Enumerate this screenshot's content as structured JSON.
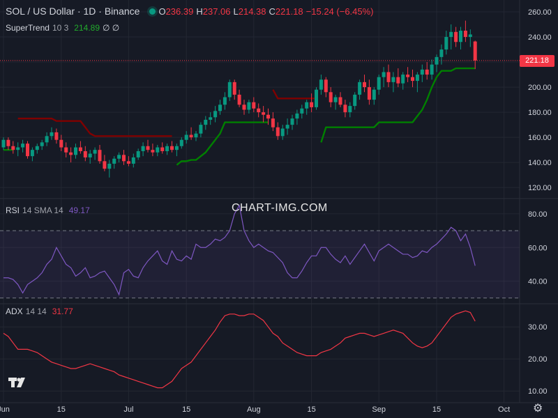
{
  "header": {
    "symbol": "SOL / US Dollar · 1D · Binance",
    "open_label": "O",
    "open": "236.39",
    "high_label": "H",
    "high": "237.06",
    "low_label": "L",
    "low": "214.38",
    "close_label": "C",
    "close": "221.18",
    "change": "−15.24 (−6.45%)"
  },
  "supertrend_legend": {
    "name": "SuperTrend",
    "params": "10 3",
    "value": "214.89",
    "extra": "∅ ∅"
  },
  "rsi_legend": {
    "name": "RSI",
    "params": "14 SMA 14",
    "value": "49.17"
  },
  "adx_legend": {
    "name": "ADX",
    "params": "14 14",
    "value": "31.77"
  },
  "watermark": "CHART-IMG.COM",
  "last_price_label": "221.18",
  "colors": {
    "up": "#089981",
    "down": "#f23645",
    "st_up": "#008000",
    "st_down": "#800000",
    "rsi": "#7e57c2",
    "adx": "#f23645",
    "bg": "#161a25",
    "grid": "#232732",
    "axis": "#d1d4dc"
  },
  "icons": {
    "logo": "tradingview-logo-icon",
    "settings": "gear-icon"
  },
  "chart_data": [
    {
      "type": "candlestick",
      "title": "SOL / US Dollar · 1D · Binance",
      "x_tick_labels": [
        "Jun",
        "15",
        "Jul",
        "15",
        "Aug",
        "15",
        "Sep",
        "15",
        "Oct"
      ],
      "y_ticks": [
        120,
        140,
        160,
        180,
        200,
        220,
        240,
        260
      ],
      "ylim": [
        114,
        265
      ],
      "candles": [
        [
          152,
          160,
          150,
          158
        ],
        [
          158,
          160,
          150,
          153
        ],
        [
          153,
          157,
          147,
          150
        ],
        [
          150,
          156,
          145,
          152
        ],
        [
          152,
          158,
          148,
          155
        ],
        [
          155,
          157,
          143,
          145
        ],
        [
          145,
          152,
          141,
          150
        ],
        [
          150,
          155,
          147,
          153
        ],
        [
          153,
          158,
          150,
          156
        ],
        [
          156,
          164,
          153,
          161
        ],
        [
          161,
          168,
          158,
          164
        ],
        [
          164,
          167,
          155,
          158
        ],
        [
          158,
          162,
          149,
          152
        ],
        [
          152,
          156,
          144,
          148
        ],
        [
          148,
          152,
          140,
          146
        ],
        [
          146,
          155,
          143,
          152
        ],
        [
          152,
          157,
          147,
          149
        ],
        [
          149,
          153,
          141,
          144
        ],
        [
          144,
          150,
          139,
          147
        ],
        [
          147,
          152,
          142,
          150
        ],
        [
          150,
          154,
          139,
          141
        ],
        [
          141,
          146,
          133,
          135
        ],
        [
          135,
          142,
          128,
          139
        ],
        [
          139,
          145,
          135,
          143
        ],
        [
          143,
          148,
          140,
          146
        ],
        [
          146,
          150,
          138,
          141
        ],
        [
          141,
          145,
          137,
          139
        ],
        [
          139,
          147,
          136,
          144
        ],
        [
          144,
          151,
          142,
          149
        ],
        [
          149,
          156,
          145,
          153
        ],
        [
          153,
          158,
          148,
          150
        ],
        [
          150,
          155,
          145,
          148
        ],
        [
          148,
          154,
          145,
          152
        ],
        [
          152,
          156,
          147,
          149
        ],
        [
          149,
          155,
          146,
          153
        ],
        [
          153,
          157,
          148,
          150
        ],
        [
          150,
          155,
          145,
          153
        ],
        [
          153,
          160,
          151,
          158
        ],
        [
          158,
          165,
          155,
          162
        ],
        [
          162,
          168,
          158,
          160
        ],
        [
          160,
          165,
          157,
          163
        ],
        [
          163,
          172,
          160,
          170
        ],
        [
          170,
          177,
          166,
          174
        ],
        [
          174,
          180,
          170,
          176
        ],
        [
          176,
          185,
          172,
          181
        ],
        [
          181,
          190,
          178,
          186
        ],
        [
          186,
          196,
          182,
          192
        ],
        [
          192,
          206,
          189,
          204
        ],
        [
          204,
          206,
          190,
          194
        ],
        [
          194,
          198,
          184,
          186
        ],
        [
          186,
          190,
          178,
          182
        ],
        [
          182,
          190,
          179,
          188
        ],
        [
          188,
          192,
          180,
          183
        ],
        [
          183,
          187,
          176,
          180
        ],
        [
          180,
          185,
          172,
          178
        ],
        [
          178,
          183,
          170,
          175
        ],
        [
          175,
          180,
          165,
          168
        ],
        [
          168,
          172,
          158,
          161
        ],
        [
          161,
          170,
          158,
          167
        ],
        [
          167,
          175,
          162,
          170
        ],
        [
          170,
          178,
          166,
          175
        ],
        [
          175,
          182,
          170,
          179
        ],
        [
          179,
          186,
          175,
          183
        ],
        [
          183,
          190,
          178,
          188
        ],
        [
          188,
          195,
          180,
          184
        ],
        [
          184,
          200,
          182,
          198
        ],
        [
          198,
          210,
          194,
          206
        ],
        [
          206,
          208,
          192,
          196
        ],
        [
          196,
          200,
          184,
          188
        ],
        [
          188,
          194,
          182,
          192
        ],
        [
          192,
          196,
          184,
          186
        ],
        [
          186,
          190,
          176,
          180
        ],
        [
          180,
          188,
          176,
          185
        ],
        [
          185,
          196,
          182,
          194
        ],
        [
          194,
          206,
          190,
          204
        ],
        [
          204,
          210,
          196,
          200
        ],
        [
          200,
          206,
          186,
          190
        ],
        [
          190,
          200,
          186,
          198
        ],
        [
          198,
          210,
          194,
          208
        ],
        [
          208,
          216,
          200,
          212
        ],
        [
          212,
          218,
          200,
          204
        ],
        [
          204,
          212,
          196,
          208
        ],
        [
          208,
          215,
          200,
          203
        ],
        [
          203,
          212,
          198,
          210
        ],
        [
          210,
          216,
          204,
          208
        ],
        [
          208,
          214,
          200,
          205
        ],
        [
          205,
          212,
          196,
          210
        ],
        [
          210,
          218,
          204,
          214
        ],
        [
          214,
          220,
          206,
          210
        ],
        [
          210,
          222,
          206,
          218
        ],
        [
          218,
          226,
          212,
          224
        ],
        [
          224,
          234,
          218,
          230
        ],
        [
          230,
          245,
          226,
          240
        ],
        [
          240,
          250,
          230,
          244
        ],
        [
          244,
          248,
          232,
          236
        ],
        [
          236,
          248,
          230,
          245
        ],
        [
          245,
          253,
          236,
          240
        ],
        [
          240,
          246,
          232,
          242
        ],
        [
          236.39,
          237.06,
          214.38,
          221.18
        ]
      ],
      "supertrend": [
        {
          "dir": "up",
          "v": 150
        },
        {
          "dir": "up",
          "v": 150
        },
        {
          "dir": "up",
          "v": 150
        },
        {
          "dir": "down",
          "v": 175
        },
        {
          "dir": "down",
          "v": 175
        },
        {
          "dir": "down",
          "v": 175
        },
        {
          "dir": "down",
          "v": 175
        },
        {
          "dir": "down",
          "v": 175
        },
        {
          "dir": "down",
          "v": 175
        },
        {
          "dir": "down",
          "v": 175
        },
        {
          "dir": "down",
          "v": 175
        },
        {
          "dir": "down",
          "v": 173
        },
        {
          "dir": "down",
          "v": 173
        },
        {
          "dir": "down",
          "v": 173
        },
        {
          "dir": "down",
          "v": 173
        },
        {
          "dir": "down",
          "v": 173
        },
        {
          "dir": "down",
          "v": 173
        },
        {
          "dir": "down",
          "v": 168
        },
        {
          "dir": "down",
          "v": 163
        },
        {
          "dir": "down",
          "v": 161
        },
        {
          "dir": "down",
          "v": 161
        },
        {
          "dir": "down",
          "v": 161
        },
        {
          "dir": "down",
          "v": 161
        },
        {
          "dir": "down",
          "v": 161
        },
        {
          "dir": "down",
          "v": 161
        },
        {
          "dir": "down",
          "v": 161
        },
        {
          "dir": "down",
          "v": 161
        },
        {
          "dir": "down",
          "v": 161
        },
        {
          "dir": "down",
          "v": 161
        },
        {
          "dir": "down",
          "v": 161
        },
        {
          "dir": "down",
          "v": 161
        },
        {
          "dir": "down",
          "v": 161
        },
        {
          "dir": "down",
          "v": 161
        },
        {
          "dir": "down",
          "v": 161
        },
        {
          "dir": "down",
          "v": 161
        },
        {
          "dir": "down",
          "v": 161
        },
        {
          "dir": "up",
          "v": 138
        },
        {
          "dir": "up",
          "v": 141
        },
        {
          "dir": "up",
          "v": 141
        },
        {
          "dir": "up",
          "v": 142
        },
        {
          "dir": "up",
          "v": 142
        },
        {
          "dir": "up",
          "v": 145
        },
        {
          "dir": "up",
          "v": 148
        },
        {
          "dir": "up",
          "v": 153
        },
        {
          "dir": "up",
          "v": 158
        },
        {
          "dir": "up",
          "v": 163
        },
        {
          "dir": "up",
          "v": 172
        },
        {
          "dir": "up",
          "v": 172
        },
        {
          "dir": "up",
          "v": 172
        },
        {
          "dir": "up",
          "v": 172
        },
        {
          "dir": "up",
          "v": 172
        },
        {
          "dir": "up",
          "v": 172
        },
        {
          "dir": "up",
          "v": 172
        },
        {
          "dir": "up",
          "v": 172
        },
        {
          "dir": "up",
          "v": 172
        },
        {
          "dir": "up",
          "v": 172
        },
        {
          "dir": "down",
          "v": 198
        },
        {
          "dir": "down",
          "v": 191
        },
        {
          "dir": "down",
          "v": 191
        },
        {
          "dir": "down",
          "v": 191
        },
        {
          "dir": "down",
          "v": 191
        },
        {
          "dir": "down",
          "v": 191
        },
        {
          "dir": "down",
          "v": 191
        },
        {
          "dir": "down",
          "v": 191
        },
        {
          "dir": "down",
          "v": 191
        },
        {
          "dir": "down",
          "v": 191
        },
        {
          "dir": "up",
          "v": 156
        },
        {
          "dir": "up",
          "v": 168
        },
        {
          "dir": "up",
          "v": 168
        },
        {
          "dir": "up",
          "v": 168
        },
        {
          "dir": "up",
          "v": 168
        },
        {
          "dir": "up",
          "v": 168
        },
        {
          "dir": "up",
          "v": 168
        },
        {
          "dir": "up",
          "v": 168
        },
        {
          "dir": "up",
          "v": 168
        },
        {
          "dir": "up",
          "v": 168
        },
        {
          "dir": "up",
          "v": 168
        },
        {
          "dir": "up",
          "v": 168
        },
        {
          "dir": "up",
          "v": 172
        },
        {
          "dir": "up",
          "v": 172
        },
        {
          "dir": "up",
          "v": 172
        },
        {
          "dir": "up",
          "v": 172
        },
        {
          "dir": "up",
          "v": 172
        },
        {
          "dir": "up",
          "v": 172
        },
        {
          "dir": "up",
          "v": 172
        },
        {
          "dir": "up",
          "v": 172
        },
        {
          "dir": "up",
          "v": 177
        },
        {
          "dir": "up",
          "v": 182
        },
        {
          "dir": "up",
          "v": 190
        },
        {
          "dir": "up",
          "v": 200
        },
        {
          "dir": "up",
          "v": 208
        },
        {
          "dir": "up",
          "v": 213
        },
        {
          "dir": "up",
          "v": 213
        },
        {
          "dir": "up",
          "v": 213
        },
        {
          "dir": "up",
          "v": 215
        },
        {
          "dir": "up",
          "v": 215
        },
        {
          "dir": "up",
          "v": 215
        },
        {
          "dir": "up",
          "v": 215
        },
        {
          "dir": "up",
          "v": 215
        }
      ]
    },
    {
      "type": "line",
      "title": "RSI 14 SMA 14",
      "y_ticks": [
        40,
        60,
        80
      ],
      "ylim": [
        27,
        87
      ],
      "bands": [
        30,
        70
      ],
      "values": [
        42,
        42,
        41,
        38,
        33,
        38,
        40,
        42,
        45,
        50,
        53,
        60,
        55,
        50,
        48,
        43,
        45,
        48,
        42,
        43,
        45,
        46,
        42,
        38,
        32,
        45,
        47,
        43,
        42,
        48,
        52,
        55,
        58,
        52,
        50,
        58,
        53,
        52,
        55,
        53,
        62,
        60,
        60,
        62,
        65,
        64,
        66,
        70,
        80,
        85,
        70,
        64,
        60,
        62,
        60,
        58,
        57,
        54,
        51,
        45,
        42,
        42,
        46,
        51,
        55,
        55,
        60,
        60,
        56,
        53,
        51,
        55,
        50,
        54,
        58,
        62,
        57,
        52,
        58,
        60,
        62,
        60,
        58,
        56,
        56,
        54,
        55,
        58,
        57,
        60,
        62,
        65,
        68,
        72,
        70,
        64,
        68,
        60,
        49.17
      ]
    },
    {
      "type": "line",
      "title": "ADX 14 14",
      "y_ticks": [
        10,
        20,
        30
      ],
      "ylim": [
        7,
        37
      ],
      "values": [
        28,
        27,
        25,
        23,
        23,
        23,
        22.5,
        22,
        21,
        20,
        19,
        18.5,
        18,
        17.5,
        17,
        17,
        17.5,
        18,
        18.5,
        18,
        17.5,
        17,
        16.5,
        16,
        15,
        14.5,
        14,
        13.5,
        13,
        12.5,
        12,
        11.5,
        11,
        11,
        12,
        13,
        15,
        17,
        18,
        19,
        21,
        23,
        25,
        27,
        29,
        31.5,
        33.5,
        34,
        34,
        33.5,
        33.5,
        34,
        34,
        33,
        32,
        30,
        28,
        27,
        25,
        24,
        23,
        22,
        21.5,
        21,
        21,
        21,
        22,
        22.5,
        23,
        24,
        25,
        26.5,
        27,
        27.5,
        28,
        28,
        27.5,
        27,
        27.5,
        28,
        28.5,
        29,
        28.5,
        28,
        26.5,
        25,
        24,
        23.5,
        24,
        25,
        27,
        29,
        31,
        33,
        34,
        34.5,
        35,
        34.5,
        31.77
      ]
    }
  ]
}
